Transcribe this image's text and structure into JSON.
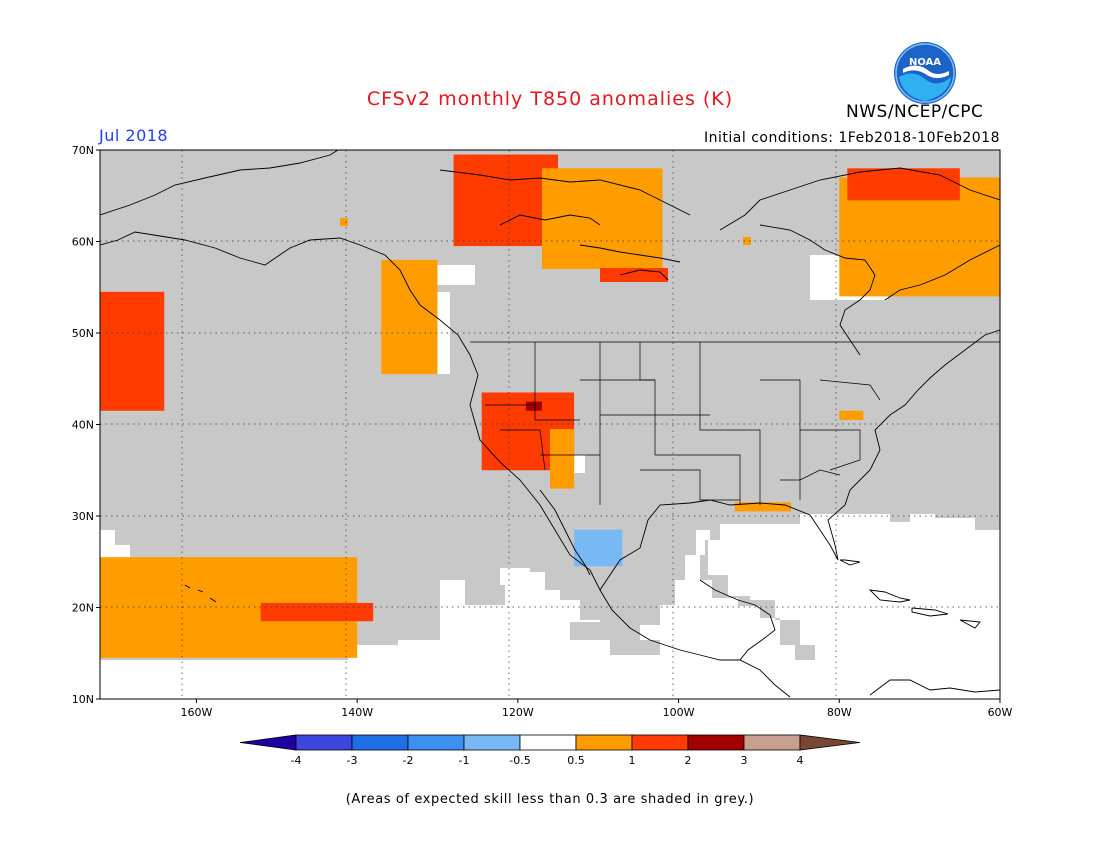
{
  "title": "CFSv2 monthly T850 anomalies (K)",
  "brand": "NWS/NCEP/CPC",
  "logo_text": "NOAA",
  "valid_month": "Jul 2018",
  "initial_conditions": "Initial conditions: 1Feb2018-10Feb2018",
  "footnote": "(Areas of expected skill less than 0.3 are shaded in grey.)",
  "map": {
    "lon_range": [
      -172,
      -60
    ],
    "lat_range": [
      10,
      70
    ],
    "lon_ticks": [
      {
        "value": -160,
        "label": "160W"
      },
      {
        "value": -140,
        "label": "140W"
      },
      {
        "value": -120,
        "label": "120W"
      },
      {
        "value": -100,
        "label": "100W"
      },
      {
        "value": -80,
        "label": "80W"
      },
      {
        "value": -60,
        "label": "60W"
      }
    ],
    "lat_ticks": [
      {
        "value": 70,
        "label": "70N"
      },
      {
        "value": 60,
        "label": "60N"
      },
      {
        "value": 50,
        "label": "50N"
      },
      {
        "value": 40,
        "label": "40N"
      },
      {
        "value": 30,
        "label": "30N"
      },
      {
        "value": 20,
        "label": "20N"
      },
      {
        "value": 10,
        "label": "10N"
      }
    ],
    "grid": true,
    "colors": {
      "low_skill_grey": "#c8c8c8",
      "ocean_land_outline": "#000000"
    },
    "anomaly_regions": [
      {
        "category": "0.5-1",
        "color": "#ff9c00",
        "lon": [
          -172,
          -140
        ],
        "lat": [
          14.5,
          25.5
        ]
      },
      {
        "category": "1-2",
        "color": "#ff3b00",
        "lon": [
          -172,
          -164
        ],
        "lat": [
          41.5,
          54.5
        ]
      },
      {
        "category": "1-2",
        "color": "#ff3b00",
        "lon": [
          -152,
          -138
        ],
        "lat": [
          18.5,
          20.5
        ]
      },
      {
        "category": "0.5-1",
        "color": "#ff9c00",
        "lon": [
          -137,
          -130
        ],
        "lat": [
          45.5,
          58
        ]
      },
      {
        "category": "1-2",
        "color": "#ff3b00",
        "lon": [
          -124.5,
          -113
        ],
        "lat": [
          35,
          43.5
        ]
      },
      {
        "category": "2-3",
        "color": "#a20000",
        "lon": [
          -119,
          -117
        ],
        "lat": [
          41.5,
          42.5
        ]
      },
      {
        "category": "0.5-1",
        "color": "#ff9c00",
        "lon": [
          -116,
          -113
        ],
        "lat": [
          33,
          39.5
        ]
      },
      {
        "category": "-1--0.5",
        "color": "#78b9f5",
        "lon": [
          -113,
          -107
        ],
        "lat": [
          24.5,
          28.5
        ]
      },
      {
        "category": "0.5-1",
        "color": "#ff9c00",
        "lon": [
          -93,
          -86
        ],
        "lat": [
          30.5,
          31.5
        ]
      },
      {
        "category": "0.5-1",
        "color": "#ff9c00",
        "lon": [
          -80,
          -77
        ],
        "lat": [
          40.5,
          41.5
        ]
      },
      {
        "category": "1-2",
        "color": "#ff3b00",
        "lon": [
          -128,
          -115
        ],
        "lat": [
          59.5,
          69.5
        ]
      },
      {
        "category": "0.5-1",
        "color": "#ff9c00",
        "lon": [
          -117,
          -102
        ],
        "lat": [
          57,
          68
        ]
      },
      {
        "category": "0.5-1",
        "color": "#ff9c00",
        "lon": [
          -80,
          -60
        ],
        "lat": [
          54,
          67
        ]
      },
      {
        "category": "1-2",
        "color": "#ff3b00",
        "lon": [
          -79,
          -65
        ],
        "lat": [
          64.5,
          68
        ]
      }
    ]
  },
  "colorbar": {
    "colors": [
      "#1e00a0",
      "#3c46dc",
      "#1e6ee6",
      "#3c91f0",
      "#78b9f5",
      "#ffffff",
      "#ff9c00",
      "#ff3b00",
      "#a20000",
      "#c8a090",
      "#784633"
    ],
    "labels": [
      "-4",
      "-3",
      "-2",
      "-1",
      "-0.5",
      "0.5",
      "1",
      "2",
      "3",
      "4"
    ]
  }
}
